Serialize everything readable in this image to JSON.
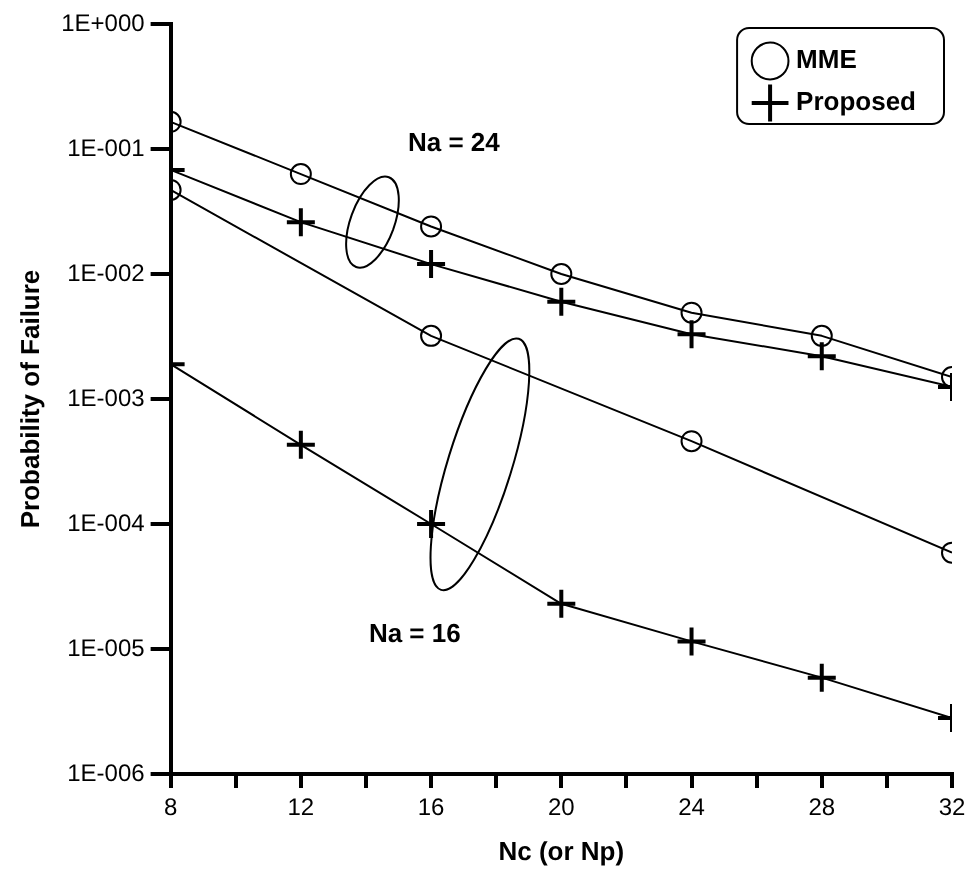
{
  "chart_data": {
    "type": "line",
    "xlabel": "Nc (or Np)",
    "ylabel": "Probability of Failure",
    "x": [
      8,
      12,
      16,
      20,
      24,
      28,
      32
    ],
    "series": [
      {
        "name": "MME",
        "color": "#000000",
        "marker": "circle",
        "values": [
          0.165,
          0.063,
          0.024,
          0.01,
          0.0049,
          0.0032,
          0.0015
        ]
      },
      {
        "name": "Proposed",
        "color": "#000000",
        "marker": "cross",
        "values": [
          0.068,
          0.026,
          0.012,
          0.006,
          0.0033,
          0.0022,
          0.00125
        ]
      },
      {
        "color": "#000000",
        "marker": "circle",
        "x": [
          8,
          16,
          24,
          32
        ],
        "values": [
          0.047,
          0.0032,
          0.00046,
          5.9e-05
        ]
      },
      {
        "color": "#000000",
        "marker": "cross",
        "values": [
          0.0019,
          0.00043,
          0.0001,
          2.3e-05,
          1.15e-05,
          5.9e-06,
          2.8e-06
        ]
      }
    ],
    "log": "y",
    "xlim": [
      8,
      32
    ],
    "ylim": [
      1e-06,
      1
    ],
    "xticks": [
      8,
      {
        "value": 10,
        "label": null
      },
      12,
      {
        "value": 14,
        "label": null
      },
      16,
      {
        "value": 18,
        "label": null
      },
      20,
      {
        "value": 22,
        "label": null
      },
      24,
      {
        "value": 26,
        "label": null
      },
      28,
      {
        "value": 30,
        "label": null
      },
      32
    ],
    "yticks": [
      {
        "value": 1e-06,
        "label": "1E-006"
      },
      {
        "value": 1e-05,
        "label": "1E-005"
      },
      {
        "value": 0.0001,
        "label": "1E-004"
      },
      {
        "value": 0.001,
        "label": "1E-003"
      },
      {
        "value": 0.01,
        "label": "1E-002"
      },
      {
        "value": 0.1,
        "label": "1E-001"
      },
      {
        "value": 1,
        "label": "1E+000"
      }
    ],
    "grid": false,
    "legend": "top right",
    "line_style": "solid",
    "annotations": [
      "Na = 24",
      "Na = 16"
    ]
  }
}
